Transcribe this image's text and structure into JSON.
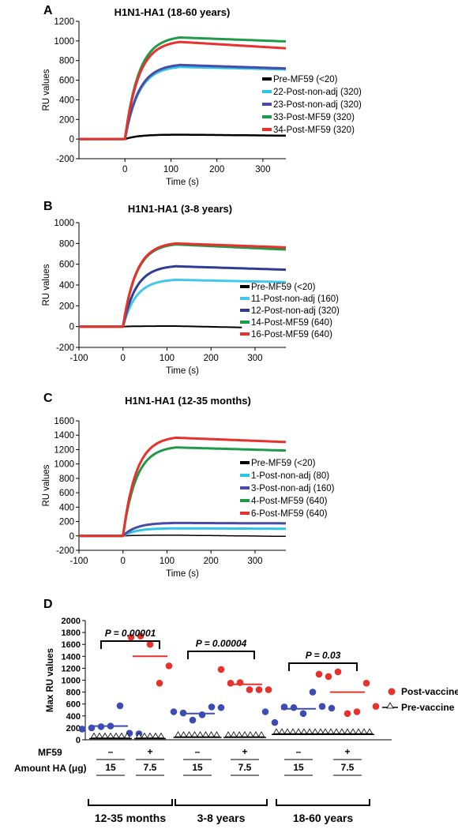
{
  "chart_data": [
    {
      "panel": "A",
      "type": "line",
      "title": "H1N1-HA1 (18-60 years)",
      "xlabel": "Time (s)",
      "ylabel": "RU values",
      "xlim": [
        -100,
        350
      ],
      "ylim": [
        -200,
        1200
      ],
      "xticks": [
        "0",
        "100",
        "200",
        "300"
      ],
      "yticks": [
        "-200",
        "0",
        "200",
        "400",
        "600",
        "800",
        "1000",
        "1200"
      ],
      "legend_position": "right",
      "series": [
        {
          "name": "Pre-MF59 (<20)",
          "color": "#000000",
          "plateau": 45,
          "end": 35,
          "stroke": 2.5
        },
        {
          "name": "22-Post-non-adj (320)",
          "color": "#2ec4e6",
          "plateau": 735,
          "end": 710,
          "stroke": 3
        },
        {
          "name": "23-Post-non-adj (320)",
          "color": "#4a4aa8",
          "plateau": 755,
          "end": 720,
          "stroke": 3
        },
        {
          "name": "33-Post-MF59 (320)",
          "color": "#1f9a4a",
          "plateau": 1035,
          "end": 995,
          "stroke": 3
        },
        {
          "name": "34-Post-MF59 (320)",
          "color": "#e8302c",
          "plateau": 990,
          "end": 925,
          "stroke": 3
        }
      ]
    },
    {
      "panel": "B",
      "type": "line",
      "title": "H1N1-HA1 (3-8 years)",
      "xlabel": "Time (s)",
      "ylabel": "RU values",
      "xlim": [
        -100,
        370
      ],
      "ylim": [
        -200,
        1000
      ],
      "xticks": [
        "-100",
        "0",
        "100",
        "200",
        "300"
      ],
      "yticks": [
        "-200",
        "0",
        "200",
        "400",
        "600",
        "800",
        "1000"
      ],
      "legend_position": "right",
      "series": [
        {
          "name": "Pre-MF59 (<20)",
          "color": "#000000",
          "plateau": 5,
          "end": -15,
          "stroke": 2
        },
        {
          "name": "11-Post-non-adj (160)",
          "color": "#45c6ee",
          "plateau": 450,
          "end": 430,
          "stroke": 3
        },
        {
          "name": "12-Post-non-adj (320)",
          "color": "#2e3c96",
          "plateau": 580,
          "end": 550,
          "stroke": 3
        },
        {
          "name": "14-Post-MF59 (640)",
          "color": "#1f9a4a",
          "plateau": 790,
          "end": 745,
          "stroke": 3
        },
        {
          "name": "16-Post-MF59 (640)",
          "color": "#e8302c",
          "plateau": 800,
          "end": 765,
          "stroke": 3
        }
      ]
    },
    {
      "panel": "C",
      "type": "line",
      "title": "H1N1-HA1 (12-35 months)",
      "xlabel": "Time (s)",
      "ylabel": "RU values",
      "xlim": [
        -100,
        370
      ],
      "ylim": [
        -200,
        1600
      ],
      "xticks": [
        "-100",
        "0",
        "100",
        "200",
        "300"
      ],
      "yticks": [
        "-200",
        "0",
        "200",
        "400",
        "600",
        "800",
        "1000",
        "1200",
        "1400",
        "1600"
      ],
      "legend_position": "right",
      "series": [
        {
          "name": "Pre-MF59 (<20)",
          "color": "#000000",
          "plateau": 10,
          "end": -5,
          "stroke": 1.5
        },
        {
          "name": "1-Post-non-adj (80)",
          "color": "#2ec4e6",
          "plateau": 105,
          "end": 100,
          "stroke": 3
        },
        {
          "name": "3-Post-non-adj (160)",
          "color": "#4a4aa8",
          "plateau": 180,
          "end": 175,
          "stroke": 3
        },
        {
          "name": "4-Post-MF59 (640)",
          "color": "#1f9a4a",
          "plateau": 1230,
          "end": 1190,
          "stroke": 3
        },
        {
          "name": "6-Post-MF59 (640)",
          "color": "#e8302c",
          "plateau": 1365,
          "end": 1310,
          "stroke": 3
        }
      ]
    },
    {
      "panel": "D",
      "type": "scatter",
      "ylabel": "Max RU values",
      "ylim": [
        0,
        2000
      ],
      "yticks": [
        "0",
        "200",
        "400",
        "600",
        "800",
        "1000",
        "1200",
        "1400",
        "1600",
        "1800",
        "2000"
      ],
      "legend": [
        {
          "name": "Post-vaccine",
          "color": "#e8302c",
          "marker": "circle"
        },
        {
          "name": "Pre-vaccine",
          "color": "#000000",
          "marker": "triangle-line"
        }
      ],
      "row_labels": {
        "mf59": "MF59",
        "amount_ha": "Amount HA (μg)"
      },
      "groups": [
        {
          "name": "12-35 months",
          "p_value": "P = 0.00001",
          "subgroups": [
            {
              "mf59": "–",
              "dose": "15",
              "color": "#3d4cb5",
              "mean": 230,
              "post": [
                180,
                200,
                220,
                230,
                570,
                110,
                100
              ],
              "pre": [
                20,
                20,
                20,
                20,
                20,
                20,
                20
              ]
            },
            {
              "mf59": "+",
              "dose": "7.5",
              "color": "#e8302c",
              "mean": 1400,
              "post": [
                1720,
                1740,
                1600,
                950,
                1240
              ],
              "pre": [
                20,
                20,
                20,
                20,
                20
              ]
            }
          ]
        },
        {
          "name": "3-8 years",
          "p_value": "P = 0.00004",
          "subgroups": [
            {
              "mf59": "–",
              "dose": "15",
              "color": "#3d4cb5",
              "mean": 440,
              "post": [
                470,
                450,
                330,
                420,
                550,
                540
              ],
              "pre": [
                40,
                40,
                40,
                40,
                40,
                40,
                40,
                40
              ]
            },
            {
              "mf59": "+",
              "dose": "7.5",
              "color": "#e8302c",
              "mean": 930,
              "post": [
                1180,
                950,
                960,
                840,
                840,
                840
              ],
              "pre": [
                40,
                40,
                40,
                40,
                40,
                40,
                40
              ]
            }
          ]
        },
        {
          "name": "18-60 years",
          "p_value": "P = 0.03",
          "subgroups": [
            {
              "mf59": "–",
              "dose": "15",
              "color": "#3d4cb5",
              "mean": 520,
              "post": [
                470,
                290,
                550,
                540,
                440,
                800,
                560,
                530
              ],
              "pre": [
                90,
                90,
                90,
                90,
                90,
                90,
                90,
                90,
                90
              ]
            },
            {
              "mf59": "+",
              "dose": "7.5",
              "color": "#e8302c",
              "mean": 800,
              "post": [
                1100,
                1060,
                1140,
                440,
                470,
                950,
                560
              ],
              "pre": [
                90,
                90,
                90,
                90,
                90,
                90,
                90,
                90,
                90
              ]
            }
          ]
        }
      ]
    }
  ]
}
